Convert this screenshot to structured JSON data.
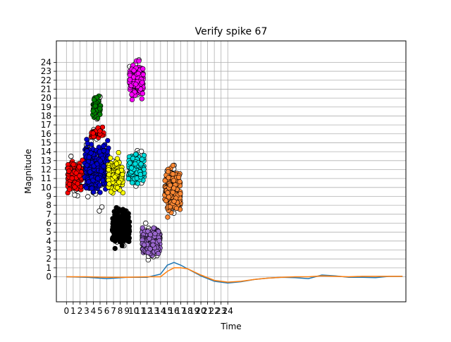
{
  "chart_data": {
    "type": "scatter",
    "title": "Verify spike 67",
    "xlabel": "Time",
    "ylabel": "Magnitude",
    "x_ticks": [
      0,
      1,
      2,
      3,
      4,
      5,
      6,
      7,
      8,
      9,
      10,
      11,
      12,
      13,
      14,
      15,
      16,
      17,
      18,
      19,
      20,
      21,
      22,
      23,
      24
    ],
    "y_ticks": [
      0,
      1,
      2,
      3,
      4,
      5,
      6,
      7,
      8,
      9,
      10,
      11,
      12,
      13,
      14,
      15,
      16,
      17,
      18,
      19,
      20,
      21,
      22,
      23,
      24
    ],
    "xlim": [
      -1.5,
      50.5
    ],
    "ylim": [
      -2.8,
      26.4
    ],
    "grid": true,
    "clusters": [
      {
        "color": "#ff0000",
        "x_range": [
          0.0,
          2.6
        ],
        "y_range": [
          8.2,
          14.2
        ],
        "points": 130
      },
      {
        "color": "#0000cc",
        "x_range": [
          2.4,
          6.6
        ],
        "y_range": [
          7.2,
          16.8
        ],
        "points": 260
      },
      {
        "color": "#ff0000",
        "x_range": [
          3.5,
          5.8
        ],
        "y_range": [
          15.0,
          17.2
        ],
        "points": 35
      },
      {
        "color": "#008000",
        "x_range": [
          3.8,
          5.2
        ],
        "y_range": [
          16.8,
          21.0
        ],
        "points": 55
      },
      {
        "color": "#ffff00",
        "x_range": [
          6.0,
          8.6
        ],
        "y_range": [
          8.4,
          14.6
        ],
        "points": 100
      },
      {
        "color": "#000000",
        "x_range": [
          6.6,
          9.6
        ],
        "y_range": [
          2.4,
          8.8
        ],
        "points": 200
      },
      {
        "color": "#00dddd",
        "x_range": [
          9.0,
          11.8
        ],
        "y_range": [
          9.4,
          15.0
        ],
        "points": 140
      },
      {
        "color": "#ff00ff",
        "x_range": [
          9.2,
          11.6
        ],
        "y_range": [
          19.0,
          24.8
        ],
        "points": 150
      },
      {
        "color": "#9966cc",
        "x_range": [
          11.0,
          14.2
        ],
        "y_range": [
          1.2,
          6.6
        ],
        "points": 160
      },
      {
        "color": "#ff8833",
        "x_range": [
          14.4,
          17.2
        ],
        "y_range": [
          5.6,
          13.8
        ],
        "points": 150
      }
    ],
    "lines": [
      {
        "color": "#1f77b4",
        "x": [
          0,
          3,
          6,
          9,
          12,
          14,
          15,
          16,
          17,
          18,
          20,
          22,
          24,
          26,
          28,
          30,
          32,
          34,
          36,
          38,
          40,
          42,
          44,
          46,
          48,
          50
        ],
        "y": [
          0,
          -0.05,
          -0.2,
          -0.05,
          -0.05,
          0.3,
          1.3,
          1.6,
          1.3,
          0.9,
          0.1,
          -0.5,
          -0.7,
          -0.55,
          -0.3,
          -0.15,
          -0.05,
          -0.1,
          -0.2,
          0.2,
          0.1,
          -0.05,
          -0.05,
          -0.1,
          0.05,
          0.05
        ]
      },
      {
        "color": "#ff7f0e",
        "x": [
          0,
          3,
          6,
          9,
          12,
          14,
          15,
          16,
          17,
          18,
          20,
          22,
          24,
          26,
          28,
          30,
          32,
          34,
          36,
          38,
          40,
          42,
          44,
          46,
          48,
          50
        ],
        "y": [
          0,
          0.0,
          -0.05,
          -0.05,
          0.0,
          0.0,
          0.6,
          1.0,
          1.0,
          0.9,
          0.2,
          -0.4,
          -0.6,
          -0.5,
          -0.3,
          -0.15,
          -0.05,
          0.0,
          0.0,
          0.1,
          0.05,
          0.0,
          0.05,
          0.05,
          0.05,
          0.05
        ]
      }
    ]
  }
}
